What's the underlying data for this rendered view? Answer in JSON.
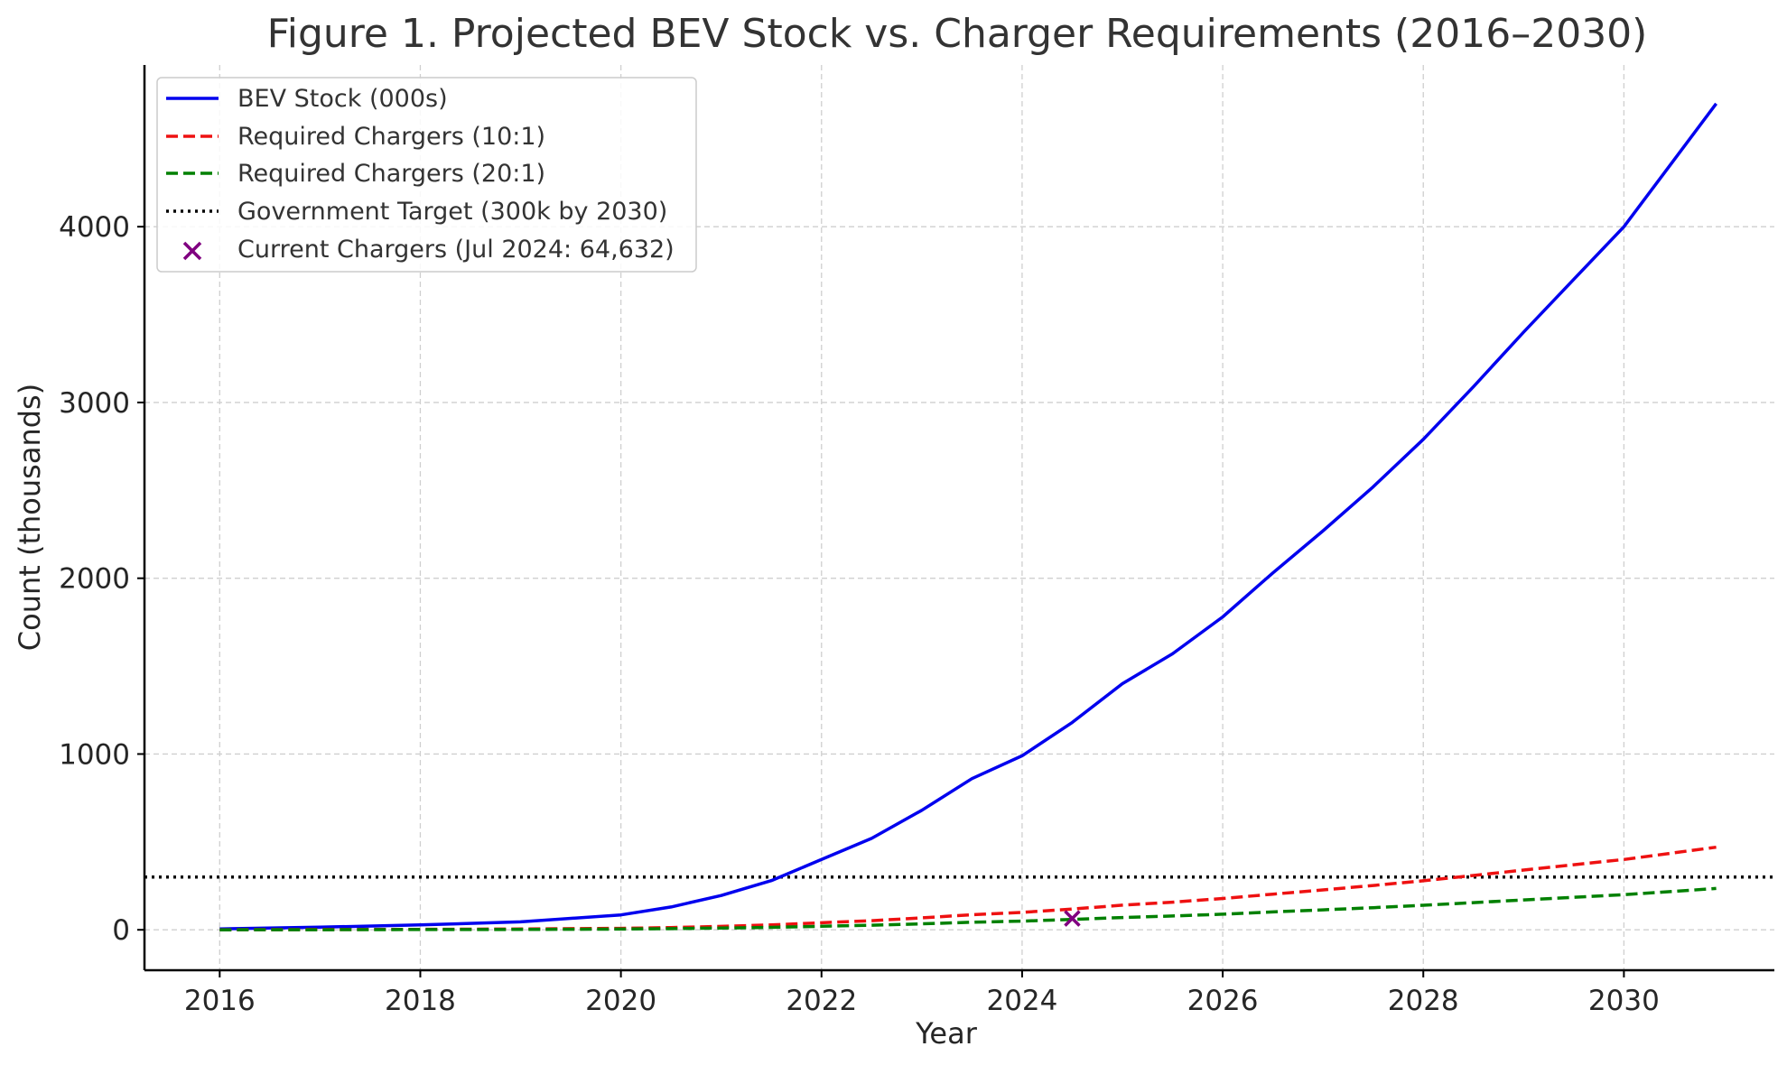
{
  "chart_data": {
    "type": "line",
    "title": "Figure 1. Projected BEV Stock vs. Charger Requirements (2016–2030)",
    "xlabel": "Year",
    "ylabel": "Count (thousands)",
    "xlim": [
      2015.25,
      2031.5
    ],
    "ylim": [
      -230,
      4920
    ],
    "x_ticks": [
      2016,
      2018,
      2020,
      2022,
      2024,
      2026,
      2028,
      2030
    ],
    "x_tick_labels": [
      "2016",
      "2018",
      "2020",
      "2022",
      "2024",
      "2026",
      "2028",
      "2030"
    ],
    "y_ticks": [
      0,
      1000,
      2000,
      3000,
      4000
    ],
    "y_tick_labels": [
      "0",
      "1000",
      "2000",
      "3000",
      "4000"
    ],
    "grid": true,
    "legend_position": "top-left",
    "x": [
      2016,
      2017,
      2018,
      2019,
      2020,
      2020.5,
      2021,
      2021.5,
      2022,
      2022.5,
      2023,
      2023.5,
      2024,
      2024.5,
      2025,
      2025.5,
      2026,
      2026.5,
      2027,
      2027.5,
      2028,
      2028.5,
      2029,
      2029.5,
      2030,
      2030.5,
      2030.92
    ],
    "series": [
      {
        "name": "BEV Stock (000s)",
        "color": "#0000ee",
        "style": "solid",
        "values": [
          5,
          15,
          28,
          45,
          85,
          130,
          195,
          280,
          400,
          520,
          680,
          860,
          990,
          1180,
          1400,
          1570,
          1780,
          2030,
          2270,
          2520,
          2790,
          3090,
          3400,
          3700,
          4000,
          4380,
          4700
        ]
      },
      {
        "name": "Required Chargers (10:1)",
        "color": "#ee1111",
        "style": "dashed",
        "values": [
          0.5,
          1.5,
          2.8,
          4.5,
          8.5,
          13,
          19.5,
          28,
          40,
          52,
          68,
          86,
          99,
          118,
          140,
          157,
          178,
          203,
          227,
          252,
          279,
          309,
          340,
          370,
          400,
          438,
          470
        ]
      },
      {
        "name": "Required Chargers (20:1)",
        "color": "#008000",
        "style": "dashed",
        "values": [
          0.25,
          0.75,
          1.4,
          2.25,
          4.25,
          6.5,
          9.75,
          14,
          20,
          26,
          34,
          43,
          49.5,
          59,
          70,
          78.5,
          89,
          101.5,
          113.5,
          126,
          139.5,
          154.5,
          170,
          185,
          200,
          219,
          235
        ]
      }
    ],
    "reference_line": {
      "name": "Government Target (300k by 2030)",
      "y": 300,
      "color": "#000000",
      "style": "dotted"
    },
    "point": {
      "name": "Current Chargers (Jul 2024: 64,632)",
      "x": 2024.5,
      "y": 64.632,
      "color": "#800080",
      "marker": "x"
    }
  }
}
